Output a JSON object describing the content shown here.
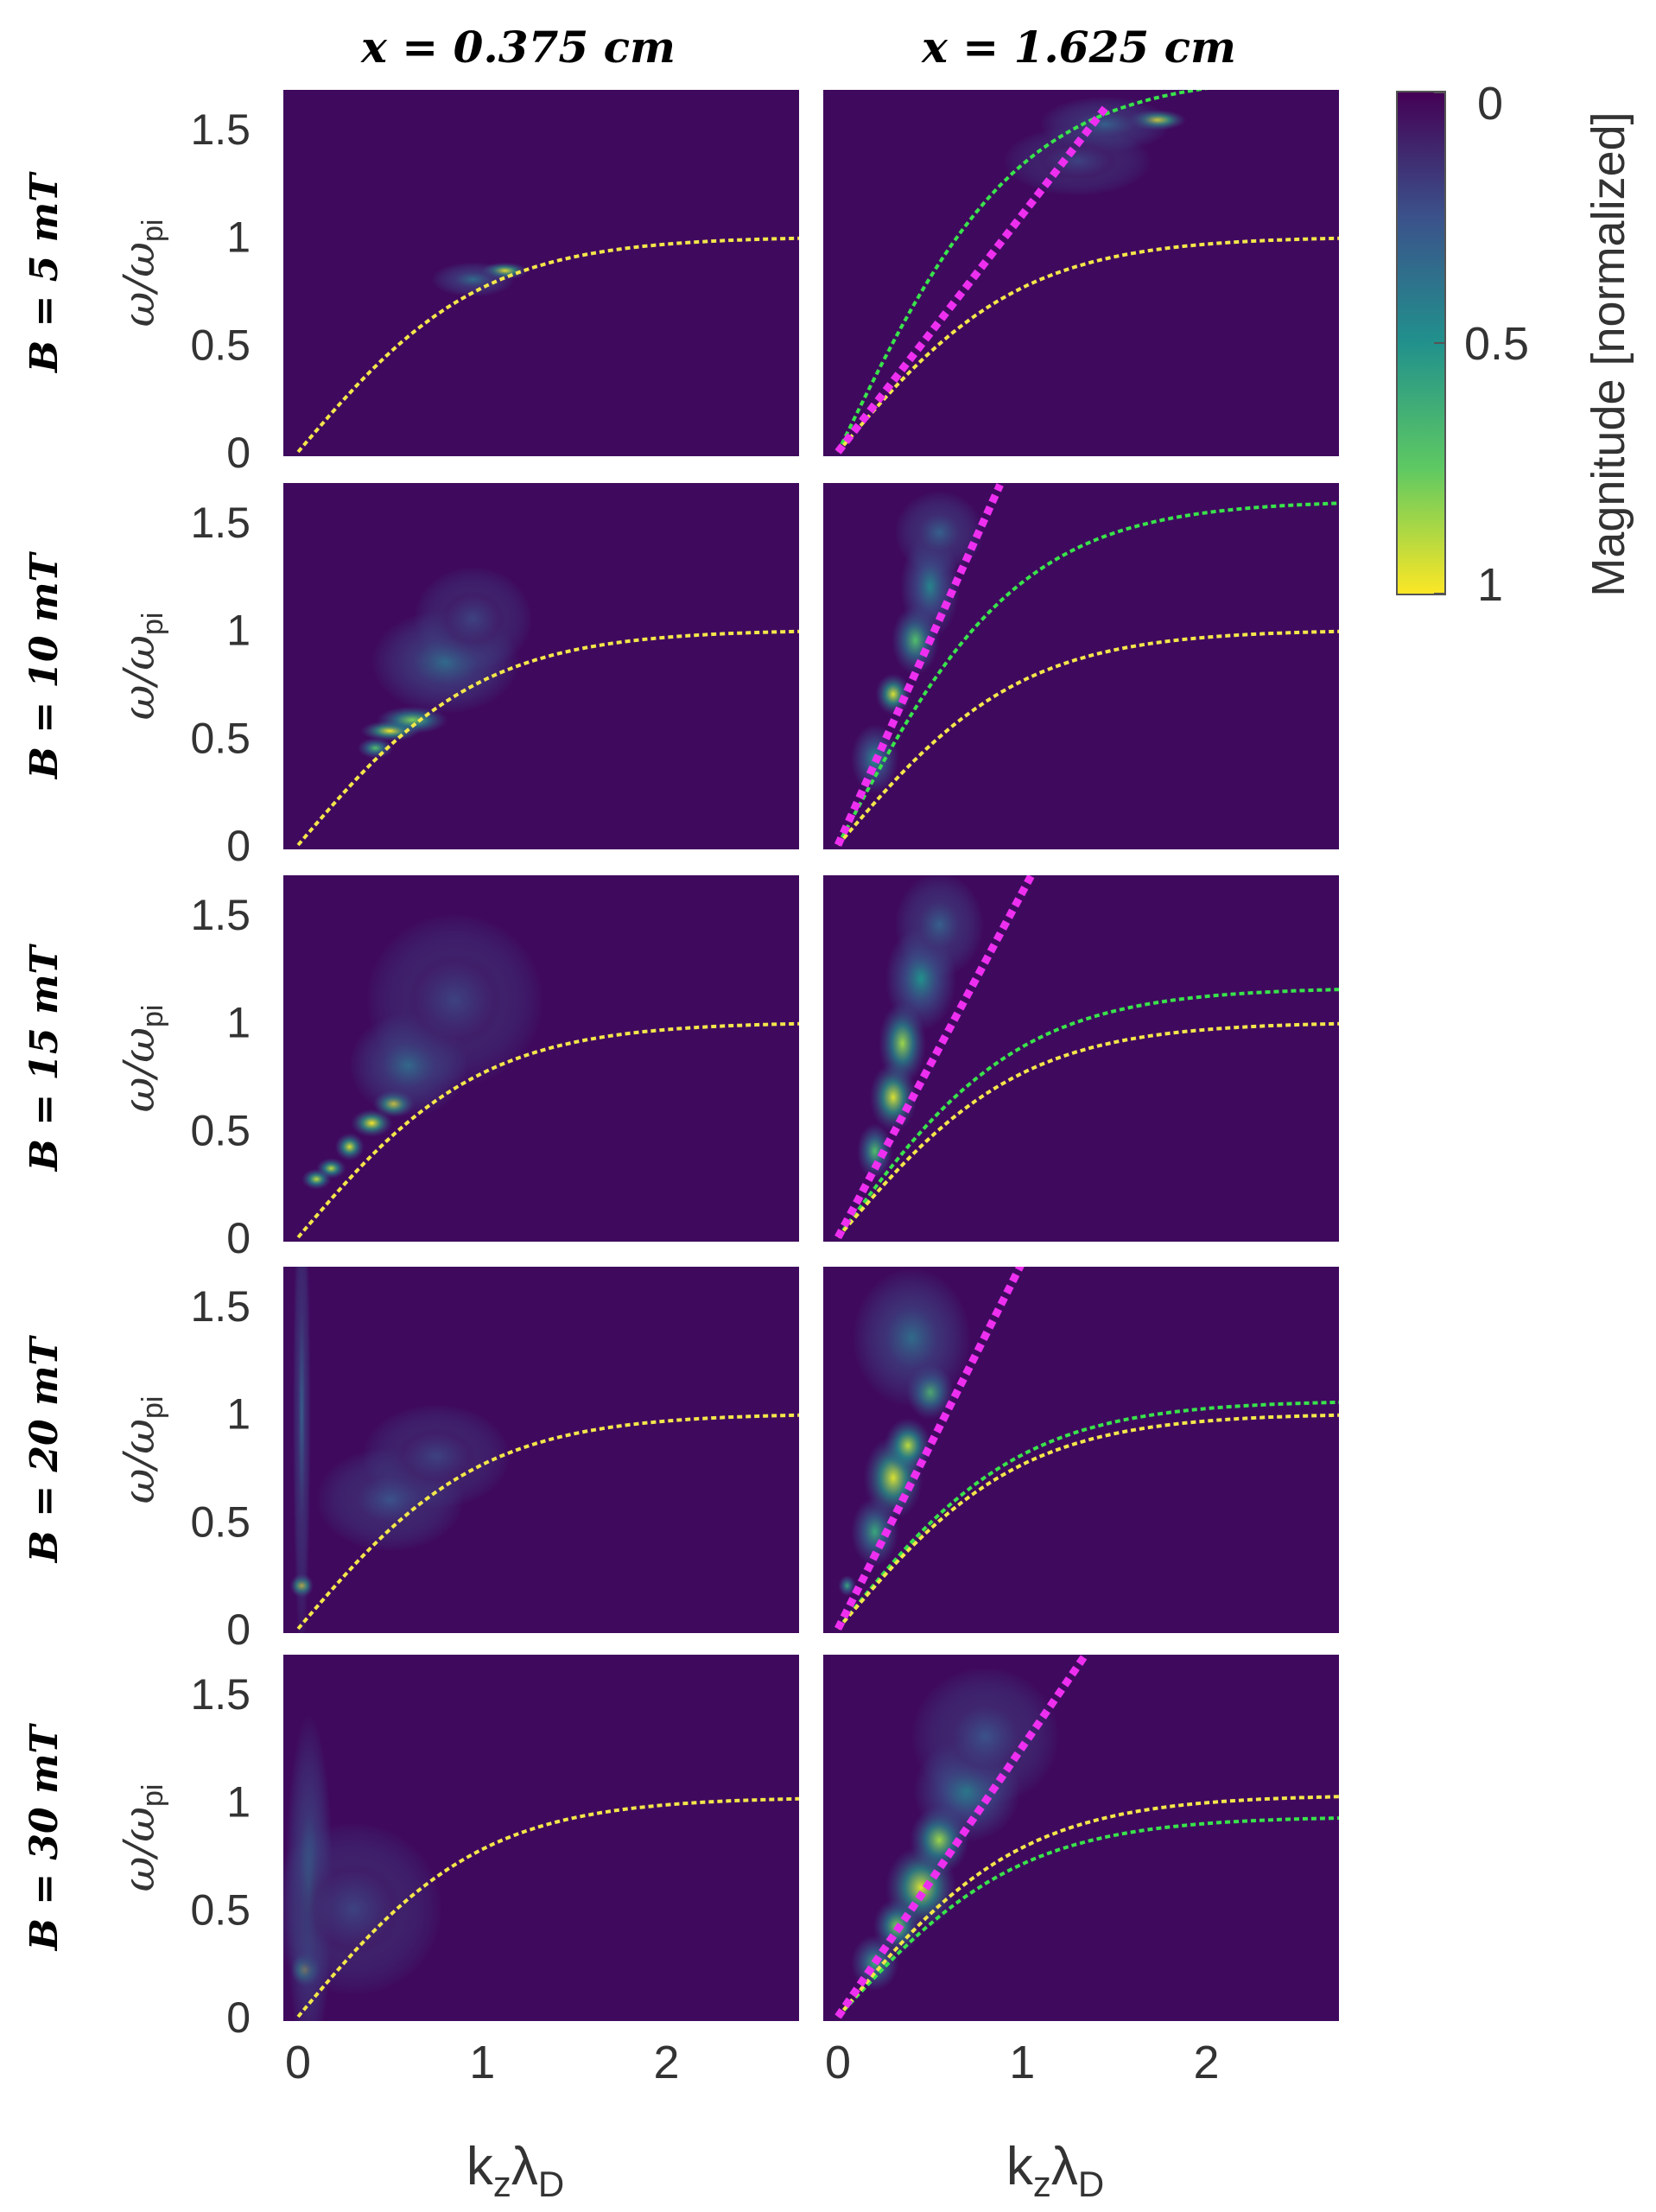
{
  "columns": [
    "x  =  0.375 cm",
    "x  =  1.625 cm"
  ],
  "rows": [
    "B = 5 mT",
    "B = 10 mT",
    "B = 15 mT",
    "B = 20 mT",
    "B = 30 mT"
  ],
  "colorbar": {
    "label": "Magnitude [normalized]",
    "ticks": [
      "0",
      "0.5",
      "1"
    ],
    "colormap": [
      "#440154",
      "#3b528b",
      "#21918c",
      "#5ec962",
      "#fde725"
    ],
    "background": "#3f0a5e"
  },
  "curve_colors": {
    "yellow": "#f3e74a",
    "green": "#39e34b",
    "magenta": "#ee2ff0"
  },
  "chart_data": {
    "type": "heatmap",
    "layout": "grid 5x2",
    "xlabel_main": "k",
    "xlabel_sub1": "z",
    "xlabel_mid": "λ",
    "xlabel_sub2": "D",
    "ylabel_main": "ω/ω",
    "ylabel_sub": "pi",
    "xlim": [
      -0.08,
      2.72
    ],
    "ylim": [
      -0.02,
      1.68
    ],
    "xticks": [
      "0",
      "1",
      "2"
    ],
    "yticks": [
      "0",
      "0.5",
      "1",
      "1.5"
    ],
    "panels": [
      {
        "row": 0,
        "col": 0,
        "yellow_a": 1.0,
        "blobs": [
          [
            1.12,
            0.84,
            0.08,
            0.025,
            1.0
          ],
          [
            0.95,
            0.8,
            0.14,
            0.05,
            0.35
          ]
        ]
      },
      {
        "row": 0,
        "col": 1,
        "magenta_slope": 1.1,
        "magenta_xmax": 1.45,
        "yellow_a": 1.0,
        "green_a": 1.75,
        "blobs": [
          [
            1.73,
            1.54,
            0.1,
            0.03,
            1.0
          ],
          [
            1.45,
            1.52,
            0.22,
            0.08,
            0.3
          ],
          [
            1.3,
            1.35,
            0.25,
            0.1,
            0.2
          ]
        ]
      },
      {
        "row": 1,
        "col": 0,
        "yellow_a": 1.0,
        "blobs": [
          [
            0.5,
            0.53,
            0.1,
            0.03,
            1.0
          ],
          [
            0.62,
            0.58,
            0.12,
            0.04,
            0.8
          ],
          [
            0.42,
            0.45,
            0.06,
            0.03,
            0.7
          ],
          [
            0.8,
            0.85,
            0.25,
            0.15,
            0.35
          ],
          [
            0.95,
            1.05,
            0.2,
            0.15,
            0.2
          ]
        ]
      },
      {
        "row": 1,
        "col": 1,
        "magenta_slope": 1.9,
        "magenta_xmax": 0.88,
        "yellow_a": 1.0,
        "green_a": 1.6,
        "blobs": [
          [
            0.3,
            0.7,
            0.06,
            0.06,
            0.95
          ],
          [
            0.42,
            0.95,
            0.08,
            0.1,
            0.7
          ],
          [
            0.5,
            1.2,
            0.1,
            0.15,
            0.45
          ],
          [
            0.55,
            1.45,
            0.15,
            0.12,
            0.3
          ],
          [
            0.2,
            0.4,
            0.08,
            0.1,
            0.5
          ]
        ]
      },
      {
        "row": 2,
        "col": 0,
        "yellow_a": 1.0,
        "blobs": [
          [
            0.52,
            0.62,
            0.07,
            0.04,
            1.0
          ],
          [
            0.4,
            0.53,
            0.07,
            0.04,
            1.0
          ],
          [
            0.28,
            0.42,
            0.05,
            0.04,
            0.95
          ],
          [
            0.18,
            0.32,
            0.05,
            0.03,
            0.9
          ],
          [
            0.1,
            0.27,
            0.05,
            0.03,
            0.9
          ],
          [
            0.6,
            0.8,
            0.2,
            0.15,
            0.35
          ],
          [
            0.85,
            1.1,
            0.3,
            0.25,
            0.2
          ]
        ]
      },
      {
        "row": 2,
        "col": 1,
        "magenta_slope": 1.6,
        "magenta_xmax": 1.05,
        "yellow_a": 1.0,
        "green_a": 1.16,
        "blobs": [
          [
            0.3,
            0.65,
            0.08,
            0.1,
            0.95
          ],
          [
            0.35,
            0.9,
            0.08,
            0.12,
            0.85
          ],
          [
            0.2,
            0.4,
            0.06,
            0.08,
            0.7
          ],
          [
            0.45,
            1.2,
            0.12,
            0.15,
            0.5
          ],
          [
            0.55,
            1.45,
            0.15,
            0.15,
            0.3
          ]
        ]
      },
      {
        "row": 3,
        "col": 0,
        "yellow_a": 1.0,
        "blobs": [
          [
            0.02,
            0.2,
            0.04,
            0.035,
            1.0
          ],
          [
            0.5,
            0.6,
            0.25,
            0.15,
            0.25
          ],
          [
            0.75,
            0.8,
            0.25,
            0.15,
            0.2
          ],
          [
            0.02,
            1.0,
            0.03,
            0.7,
            0.3
          ]
        ]
      },
      {
        "row": 3,
        "col": 1,
        "magenta_slope": 1.7,
        "magenta_xmax": 1.02,
        "yellow_a": 1.0,
        "green_a": 1.06,
        "blobs": [
          [
            0.3,
            0.7,
            0.1,
            0.12,
            0.95
          ],
          [
            0.38,
            0.85,
            0.08,
            0.08,
            0.9
          ],
          [
            0.5,
            1.1,
            0.08,
            0.08,
            0.7
          ],
          [
            0.2,
            0.45,
            0.08,
            0.1,
            0.6
          ],
          [
            0.4,
            1.35,
            0.2,
            0.2,
            0.35
          ],
          [
            0.05,
            0.2,
            0.03,
            0.03,
            0.6
          ]
        ]
      },
      {
        "row": 4,
        "col": 0,
        "yellow_a": 1.02,
        "blobs": [
          [
            0.04,
            0.22,
            0.05,
            0.05,
            1.0
          ],
          [
            0.06,
            0.6,
            0.08,
            0.5,
            0.35
          ],
          [
            0.3,
            0.5,
            0.3,
            0.25,
            0.2
          ]
        ]
      },
      {
        "row": 4,
        "col": 1,
        "magenta_slope": 1.25,
        "magenta_xmax": 1.35,
        "yellow_a": 1.03,
        "green_a": 0.93,
        "blobs": [
          [
            0.45,
            0.6,
            0.12,
            0.12,
            0.95
          ],
          [
            0.55,
            0.82,
            0.1,
            0.1,
            0.85
          ],
          [
            0.32,
            0.42,
            0.08,
            0.08,
            0.8
          ],
          [
            0.7,
            1.05,
            0.18,
            0.15,
            0.45
          ],
          [
            0.2,
            0.25,
            0.08,
            0.08,
            0.6
          ],
          [
            0.8,
            1.3,
            0.25,
            0.2,
            0.25
          ]
        ]
      }
    ]
  }
}
